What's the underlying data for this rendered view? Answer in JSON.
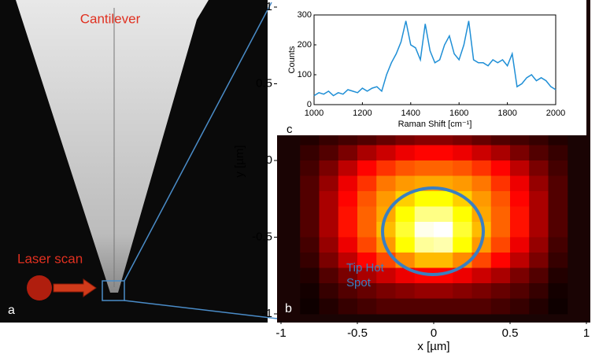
{
  "panels": {
    "a": "a",
    "b": "b",
    "c": "c"
  },
  "image": {
    "title": "Cantilever",
    "laser_label": "Laser scan"
  },
  "chart_data": [
    {
      "type": "heatmap",
      "x": [
        -0.8125,
        -0.6875,
        -0.5625,
        -0.4375,
        -0.3125,
        -0.1875,
        -0.0625,
        0.0625,
        0.1875,
        0.3125,
        0.4375,
        0.5625,
        0.6875,
        0.8125
      ],
      "y": [
        0.15,
        0.05,
        -0.05,
        -0.15,
        -0.25,
        -0.35,
        -0.45,
        -0.55,
        -0.65,
        -0.75,
        -0.85,
        -0.95
      ],
      "z": [
        [
          5,
          8,
          10,
          12,
          15,
          18,
          20,
          20,
          18,
          15,
          12,
          10,
          8,
          5
        ],
        [
          8,
          12,
          18,
          25,
          30,
          35,
          38,
          38,
          35,
          30,
          25,
          18,
          12,
          8
        ],
        [
          10,
          18,
          28,
          38,
          45,
          50,
          52,
          52,
          50,
          45,
          38,
          28,
          18,
          10
        ],
        [
          12,
          22,
          35,
          45,
          55,
          60,
          62,
          62,
          60,
          55,
          45,
          35,
          22,
          12
        ],
        [
          12,
          25,
          38,
          50,
          60,
          68,
          75,
          75,
          68,
          60,
          50,
          38,
          25,
          12
        ],
        [
          12,
          25,
          40,
          52,
          62,
          75,
          88,
          88,
          75,
          62,
          52,
          40,
          25,
          12
        ],
        [
          12,
          25,
          40,
          52,
          65,
          80,
          98,
          100,
          80,
          65,
          52,
          40,
          25,
          12
        ],
        [
          10,
          22,
          35,
          48,
          60,
          75,
          90,
          92,
          75,
          60,
          48,
          35,
          22,
          10
        ],
        [
          8,
          18,
          28,
          38,
          48,
          58,
          65,
          65,
          58,
          48,
          38,
          28,
          18,
          8
        ],
        [
          5,
          12,
          18,
          25,
          30,
          35,
          38,
          38,
          35,
          30,
          25,
          18,
          12,
          5
        ],
        [
          3,
          8,
          12,
          15,
          18,
          20,
          22,
          22,
          20,
          18,
          15,
          12,
          8,
          3
        ],
        [
          2,
          5,
          8,
          10,
          12,
          12,
          12,
          12,
          12,
          12,
          10,
          8,
          5,
          2
        ]
      ],
      "zlim": [
        0,
        100
      ],
      "colormap": "hot",
      "xlim": [
        -1,
        1
      ],
      "ylim": [
        -1,
        1
      ],
      "xticks": [
        -1,
        -0.5,
        0,
        0.5,
        1
      ],
      "yticks": [
        -1,
        -0.5,
        0,
        0.5,
        1
      ],
      "xlabel": "x [µm]",
      "ylabel": "y [µm]",
      "annotation": [
        "Tip Hot",
        "Spot"
      ]
    },
    {
      "type": "line",
      "x": [
        1000,
        1020,
        1040,
        1060,
        1080,
        1100,
        1120,
        1140,
        1160,
        1180,
        1200,
        1220,
        1240,
        1260,
        1280,
        1300,
        1320,
        1340,
        1360,
        1380,
        1400,
        1420,
        1440,
        1460,
        1480,
        1500,
        1520,
        1540,
        1560,
        1580,
        1600,
        1620,
        1640,
        1660,
        1680,
        1700,
        1720,
        1740,
        1760,
        1780,
        1800,
        1820,
        1840,
        1860,
        1880,
        1900,
        1920,
        1940,
        1960,
        1980,
        2000
      ],
      "series": [
        {
          "color": "#1f8fd6",
          "values": [
            30,
            40,
            35,
            45,
            30,
            40,
            35,
            50,
            45,
            40,
            55,
            45,
            55,
            60,
            45,
            100,
            140,
            170,
            210,
            280,
            200,
            190,
            150,
            270,
            180,
            140,
            150,
            200,
            230,
            170,
            150,
            200,
            280,
            150,
            140,
            140,
            130,
            150,
            140,
            150,
            130,
            170,
            60,
            70,
            90,
            100,
            80,
            90,
            80,
            60,
            50
          ]
        }
      ],
      "xlim": [
        1000,
        2000
      ],
      "ylim": [
        0,
        300
      ],
      "xticks": [
        1000,
        1200,
        1400,
        1600,
        1800,
        2000
      ],
      "yticks": [
        0,
        100,
        200,
        300
      ],
      "xlabel": "Raman Shift [cm⁻¹]",
      "ylabel": "Counts"
    }
  ]
}
